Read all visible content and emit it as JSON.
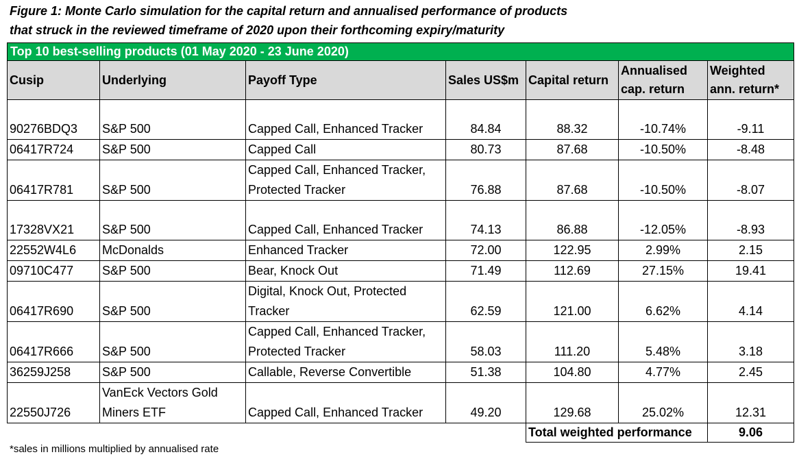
{
  "title": [
    "Figure 1: Monte Carlo simulation for the capital return and annualised performance of products",
    "that struck in the reviewed timeframe of 2020 upon their forthcoming expiry/maturity"
  ],
  "table": {
    "banner": "Top 10 best-selling products (01 May 2020 - 23 June 2020)",
    "header": [
      "Cusip",
      "Underlying",
      "Payoff Type",
      "Sales US$m",
      "Capital return",
      "Annualised cap. return",
      "Weighted ann. return*"
    ],
    "rows": [
      [
        "90276BDQ3",
        "S&P 500",
        "Capped Call, Enhanced Tracker",
        "84.84",
        "88.32",
        "-10.74%",
        "-9.11"
      ],
      [
        "06417R724",
        "S&P 500",
        "Capped Call",
        "80.73",
        "87.68",
        "-10.50%",
        "-8.48"
      ],
      [
        "06417R781",
        "S&P 500",
        "Capped Call, Enhanced Tracker, Protected Tracker",
        "76.88",
        "87.68",
        "-10.50%",
        "-8.07"
      ],
      [
        "17328VX21",
        "S&P 500",
        "Capped Call, Enhanced Tracker",
        "74.13",
        "86.88",
        "-12.05%",
        "-8.93"
      ],
      [
        "22552W4L6",
        "McDonalds",
        "Enhanced Tracker",
        "72.00",
        "122.95",
        "2.99%",
        "2.15"
      ],
      [
        "09710C477",
        "S&P 500",
        "Bear, Knock Out",
        "71.49",
        "112.69",
        "27.15%",
        "19.41"
      ],
      [
        "06417R690",
        "S&P 500",
        "Digital, Knock Out, Protected Tracker",
        "62.59",
        "121.00",
        "6.62%",
        "4.14"
      ],
      [
        "06417R666",
        "S&P 500",
        "Capped Call, Enhanced Tracker, Protected Tracker",
        "58.03",
        "111.20",
        "5.48%",
        "3.18"
      ],
      [
        "36259J258",
        "S&P 500",
        "Callable, Reverse Convertible",
        "51.38",
        "104.80",
        "4.77%",
        "2.45"
      ],
      [
        "22550J726",
        "VanEck Vectors Gold Miners ETF",
        "Capped Call, Enhanced Tracker",
        "49.20",
        "129.68",
        "25.02%",
        "12.31"
      ]
    ],
    "total_label": "Total weighted performance",
    "total_value": "9.06"
  },
  "footnote": "*sales in millions multiplied by annualised rate"
}
